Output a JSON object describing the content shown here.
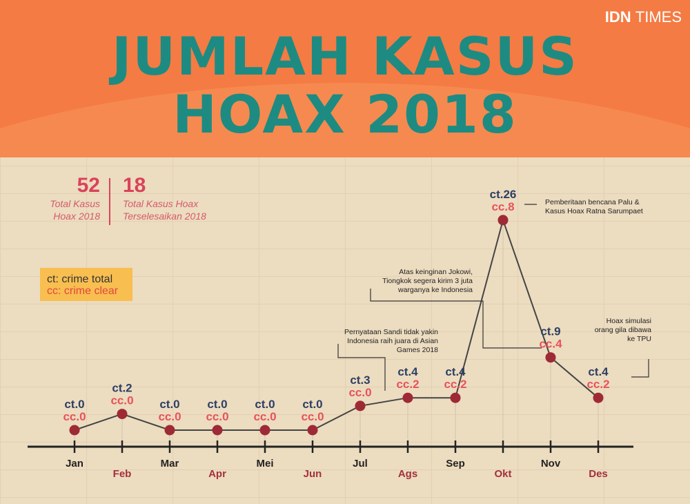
{
  "brand": {
    "bold": "IDN",
    "light": "TIMES"
  },
  "title": [
    "JUMLAH KASUS",
    "HOAX 2018"
  ],
  "stats": [
    {
      "value": "52",
      "label": [
        "Total Kasus",
        "Hoax 2018"
      ]
    },
    {
      "value": "18",
      "label": [
        "Total Kasus Hoax",
        "Terselesaikan 2018"
      ]
    }
  ],
  "legend": {
    "ct": "ct: crime total",
    "cc": "cc: crime clear"
  },
  "colors": {
    "orange": "#f47b43",
    "teal": "#1d8b82",
    "point": "#9e2a35",
    "ct": "#2d3f63",
    "cc": "#e8525c"
  },
  "chart_data": {
    "type": "line",
    "title": "JUMLAH KASUS HOAX 2018",
    "categories": [
      "Jan",
      "Feb",
      "Mar",
      "Apr",
      "Mei",
      "Jun",
      "Jul",
      "Ags",
      "Sep",
      "Okt",
      "Nov",
      "Des"
    ],
    "series": [
      {
        "name": "crime total",
        "values": [
          0,
          2,
          0,
          0,
          0,
          0,
          3,
          4,
          4,
          26,
          9,
          4
        ]
      },
      {
        "name": "crime clear",
        "values": [
          0,
          0,
          0,
          0,
          0,
          0,
          0,
          2,
          2,
          8,
          4,
          2
        ]
      }
    ],
    "annotations": [
      {
        "month": "Ags",
        "text": [
          "Pernyataan Sandi tidak yakin",
          "Indonesia raih juara di Asian",
          "Games 2018"
        ]
      },
      {
        "month": "Okt",
        "text": [
          "Pemberitaan bencana Palu &",
          "Kasus Hoax Ratna Sarumpaet"
        ]
      },
      {
        "month": "Nov",
        "text": [
          "Atas keinginan Jokowi,",
          "Tiongkok segera kirim 3 juta",
          "warganya ke Indonesia"
        ]
      },
      {
        "month": "Des",
        "text": [
          "Hoax simulasi",
          "orang gila dibawa",
          "ke TPU"
        ]
      }
    ]
  }
}
